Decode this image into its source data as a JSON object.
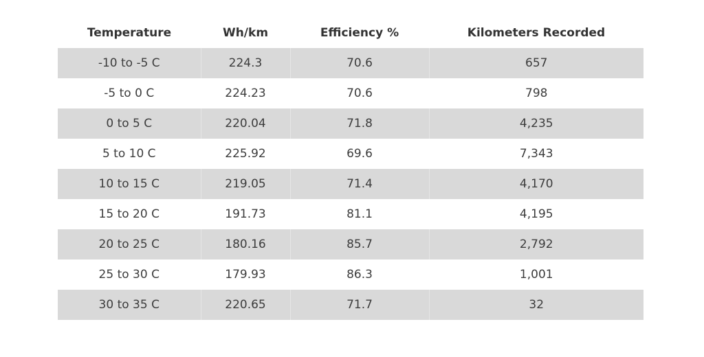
{
  "chart_data": {
    "type": "table",
    "columns": [
      "Temperature",
      "Wh/km",
      "Efficiency %",
      "Kilometers Recorded"
    ],
    "rows": [
      [
        "-10 to -5 C",
        "224.3",
        "70.6",
        "657"
      ],
      [
        "-5 to 0 C",
        "224.23",
        "70.6",
        "798"
      ],
      [
        "0 to 5 C",
        "220.04",
        "71.8",
        "4,235"
      ],
      [
        "5 to 10 C",
        "225.92",
        "69.6",
        "7,343"
      ],
      [
        "10 to 15 C",
        "219.05",
        "71.4",
        "4,170"
      ],
      [
        "15 to 20 C",
        "191.73",
        "81.1",
        "4,195"
      ],
      [
        "20 to 25 C",
        "180.16",
        "85.7",
        "2,792"
      ],
      [
        "25 to 30 C",
        "179.93",
        "86.3",
        "1,001"
      ],
      [
        "30 to 35 C",
        "220.65",
        "71.7",
        "32"
      ]
    ],
    "colors": {
      "shaded_row": "#d9d9d9",
      "plain_row": "#ffffff",
      "text": "#3c3c3c"
    }
  }
}
